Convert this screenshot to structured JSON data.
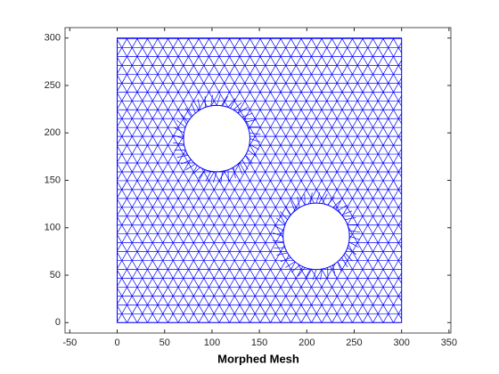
{
  "chart_data": {
    "type": "mesh",
    "xlabel": "Morphed Mesh",
    "xlim": [
      -55,
      352
    ],
    "ylim": [
      -11,
      311
    ],
    "xticks": [
      -50,
      0,
      50,
      100,
      150,
      200,
      250,
      300,
      350
    ],
    "yticks": [
      0,
      50,
      100,
      150,
      200,
      250,
      300
    ],
    "color": "#0000ff",
    "domain": {
      "x": [
        0,
        300
      ],
      "y": [
        0,
        300
      ]
    },
    "holes": [
      {
        "cx": 105,
        "cy": 194,
        "r": 35
      },
      {
        "cx": 210,
        "cy": 91,
        "r": 35
      }
    ]
  }
}
